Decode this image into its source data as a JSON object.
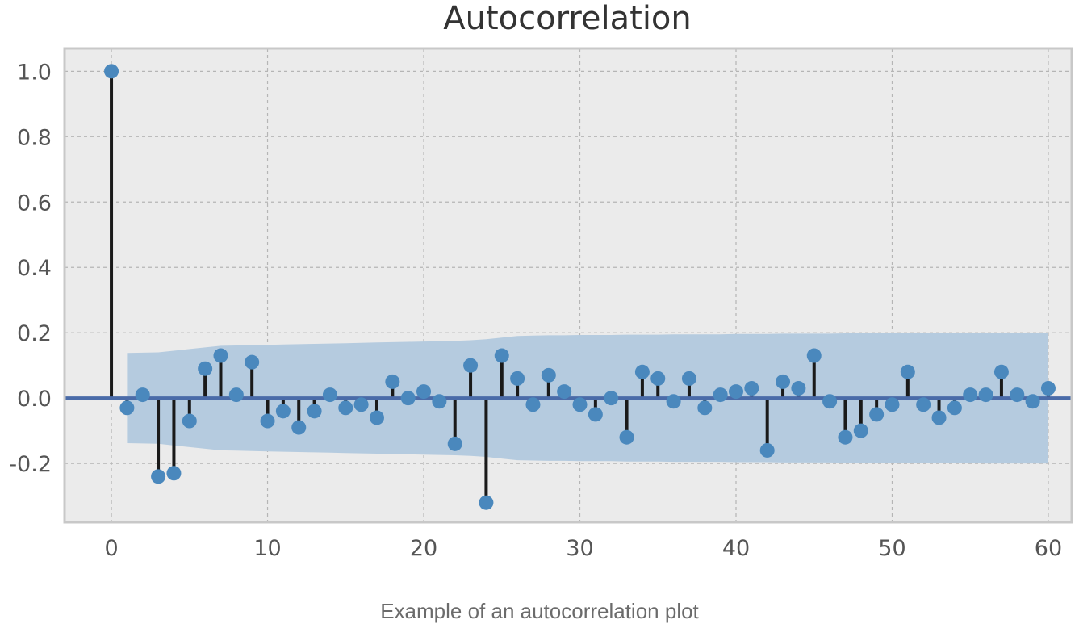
{
  "caption": "Example of an autocorrelation plot",
  "chart_data": {
    "type": "scatter",
    "style": "stem",
    "title": "Autocorrelation",
    "xlabel": "",
    "ylabel": "",
    "xlim": [
      -3,
      61.5
    ],
    "ylim": [
      -0.38,
      1.07
    ],
    "xticks": [
      0,
      10,
      20,
      30,
      40,
      50,
      60
    ],
    "yticks": [
      -0.2,
      0.0,
      0.2,
      0.4,
      0.6,
      0.8,
      1.0
    ],
    "ytick_labels": [
      "-0.2",
      "0.0",
      "0.2",
      "0.4",
      "0.6",
      "0.8",
      "1.0"
    ],
    "grid": true,
    "legend": "none",
    "x": [
      0,
      1,
      2,
      3,
      4,
      5,
      6,
      7,
      8,
      9,
      10,
      11,
      12,
      13,
      14,
      15,
      16,
      17,
      18,
      19,
      20,
      21,
      22,
      23,
      24,
      25,
      26,
      27,
      28,
      29,
      30,
      31,
      32,
      33,
      34,
      35,
      36,
      37,
      38,
      39,
      40,
      41,
      42,
      43,
      44,
      45,
      46,
      47,
      48,
      49,
      50,
      51,
      52,
      53,
      54,
      55,
      56,
      57,
      58,
      59,
      60
    ],
    "values": [
      1.0,
      -0.03,
      0.01,
      -0.24,
      -0.23,
      -0.07,
      0.09,
      0.13,
      0.01,
      0.11,
      -0.07,
      -0.04,
      -0.09,
      -0.04,
      0.01,
      -0.03,
      -0.02,
      -0.06,
      0.05,
      0.0,
      0.02,
      -0.01,
      -0.14,
      0.1,
      -0.32,
      0.13,
      0.06,
      -0.02,
      0.07,
      0.02,
      -0.02,
      -0.05,
      0.0,
      -0.12,
      0.08,
      0.06,
      -0.01,
      0.06,
      -0.03,
      0.01,
      0.02,
      0.03,
      -0.16,
      0.05,
      0.03,
      0.13,
      -0.01,
      -0.12,
      -0.1,
      -0.05,
      -0.02,
      0.08,
      -0.02,
      -0.06,
      -0.03,
      0.01,
      0.01,
      0.08,
      0.01,
      -0.01,
      0.03
    ],
    "confidence_band": {
      "x": [
        1,
        2,
        3,
        4,
        5,
        6,
        7,
        8,
        9,
        10,
        11,
        12,
        13,
        14,
        15,
        16,
        17,
        18,
        19,
        20,
        21,
        22,
        23,
        24,
        25,
        26,
        27,
        28,
        29,
        30,
        31,
        32,
        33,
        34,
        35,
        36,
        37,
        38,
        39,
        40,
        41,
        42,
        43,
        44,
        45,
        46,
        47,
        48,
        49,
        50,
        51,
        52,
        53,
        54,
        55,
        56,
        57,
        58,
        59,
        60
      ],
      "upper": [
        0.138,
        0.139,
        0.14,
        0.145,
        0.15,
        0.155,
        0.16,
        0.161,
        0.162,
        0.163,
        0.164,
        0.165,
        0.166,
        0.167,
        0.168,
        0.169,
        0.17,
        0.171,
        0.172,
        0.173,
        0.174,
        0.175,
        0.177,
        0.18,
        0.185,
        0.19,
        0.191,
        0.192,
        0.192,
        0.193,
        0.193,
        0.193,
        0.194,
        0.194,
        0.194,
        0.195,
        0.195,
        0.195,
        0.195,
        0.196,
        0.196,
        0.196,
        0.197,
        0.197,
        0.197,
        0.197,
        0.198,
        0.198,
        0.198,
        0.198,
        0.199,
        0.199,
        0.199,
        0.199,
        0.199,
        0.2,
        0.2,
        0.2,
        0.2,
        0.2
      ],
      "lower": [
        -0.138,
        -0.139,
        -0.14,
        -0.145,
        -0.15,
        -0.155,
        -0.16,
        -0.161,
        -0.162,
        -0.163,
        -0.164,
        -0.165,
        -0.166,
        -0.167,
        -0.168,
        -0.169,
        -0.17,
        -0.171,
        -0.172,
        -0.173,
        -0.174,
        -0.175,
        -0.177,
        -0.18,
        -0.185,
        -0.19,
        -0.191,
        -0.192,
        -0.192,
        -0.193,
        -0.193,
        -0.193,
        -0.194,
        -0.194,
        -0.194,
        -0.195,
        -0.195,
        -0.195,
        -0.195,
        -0.196,
        -0.196,
        -0.196,
        -0.197,
        -0.197,
        -0.197,
        -0.197,
        -0.198,
        -0.198,
        -0.198,
        -0.198,
        -0.199,
        -0.199,
        -0.199,
        -0.199,
        -0.199,
        -0.2,
        -0.2,
        -0.2,
        -0.2,
        -0.2
      ]
    },
    "colors": {
      "plot_background": "#ebebeb",
      "frame": "#c8c8c8",
      "grid": "#b5b5b5",
      "band": "#b5cbdf",
      "stem": "#1a1a1a",
      "marker": "#4a88bd",
      "baseline": "#4a6ba8"
    }
  }
}
